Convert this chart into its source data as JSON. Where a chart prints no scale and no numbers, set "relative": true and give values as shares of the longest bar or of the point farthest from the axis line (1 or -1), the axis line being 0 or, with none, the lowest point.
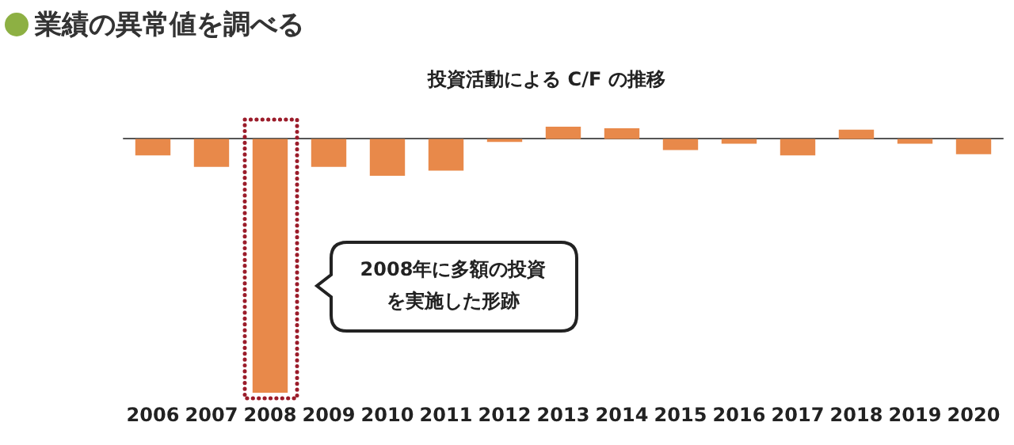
{
  "chart_data": {
    "type": "bar",
    "title": "業績の異常値を調べる",
    "subtitle": "投資活動による C/F の推移",
    "categories": [
      "2006",
      "2007",
      "2008",
      "2009",
      "2010",
      "2011",
      "2012",
      "2013",
      "2014",
      "2015",
      "2016",
      "2017",
      "2018",
      "2019",
      "2020"
    ],
    "values": [
      -0.065,
      -0.11,
      -1,
      -0.11,
      -0.145,
      -0.125,
      -0.012,
      0.048,
      0.042,
      -0.044,
      -0.019,
      -0.065,
      0.036,
      -0.019,
      -0.06
    ],
    "color": "#e8894a",
    "relative": true,
    "annotations": [
      "2008年に多額の投資を実施した形跡"
    ]
  }
}
